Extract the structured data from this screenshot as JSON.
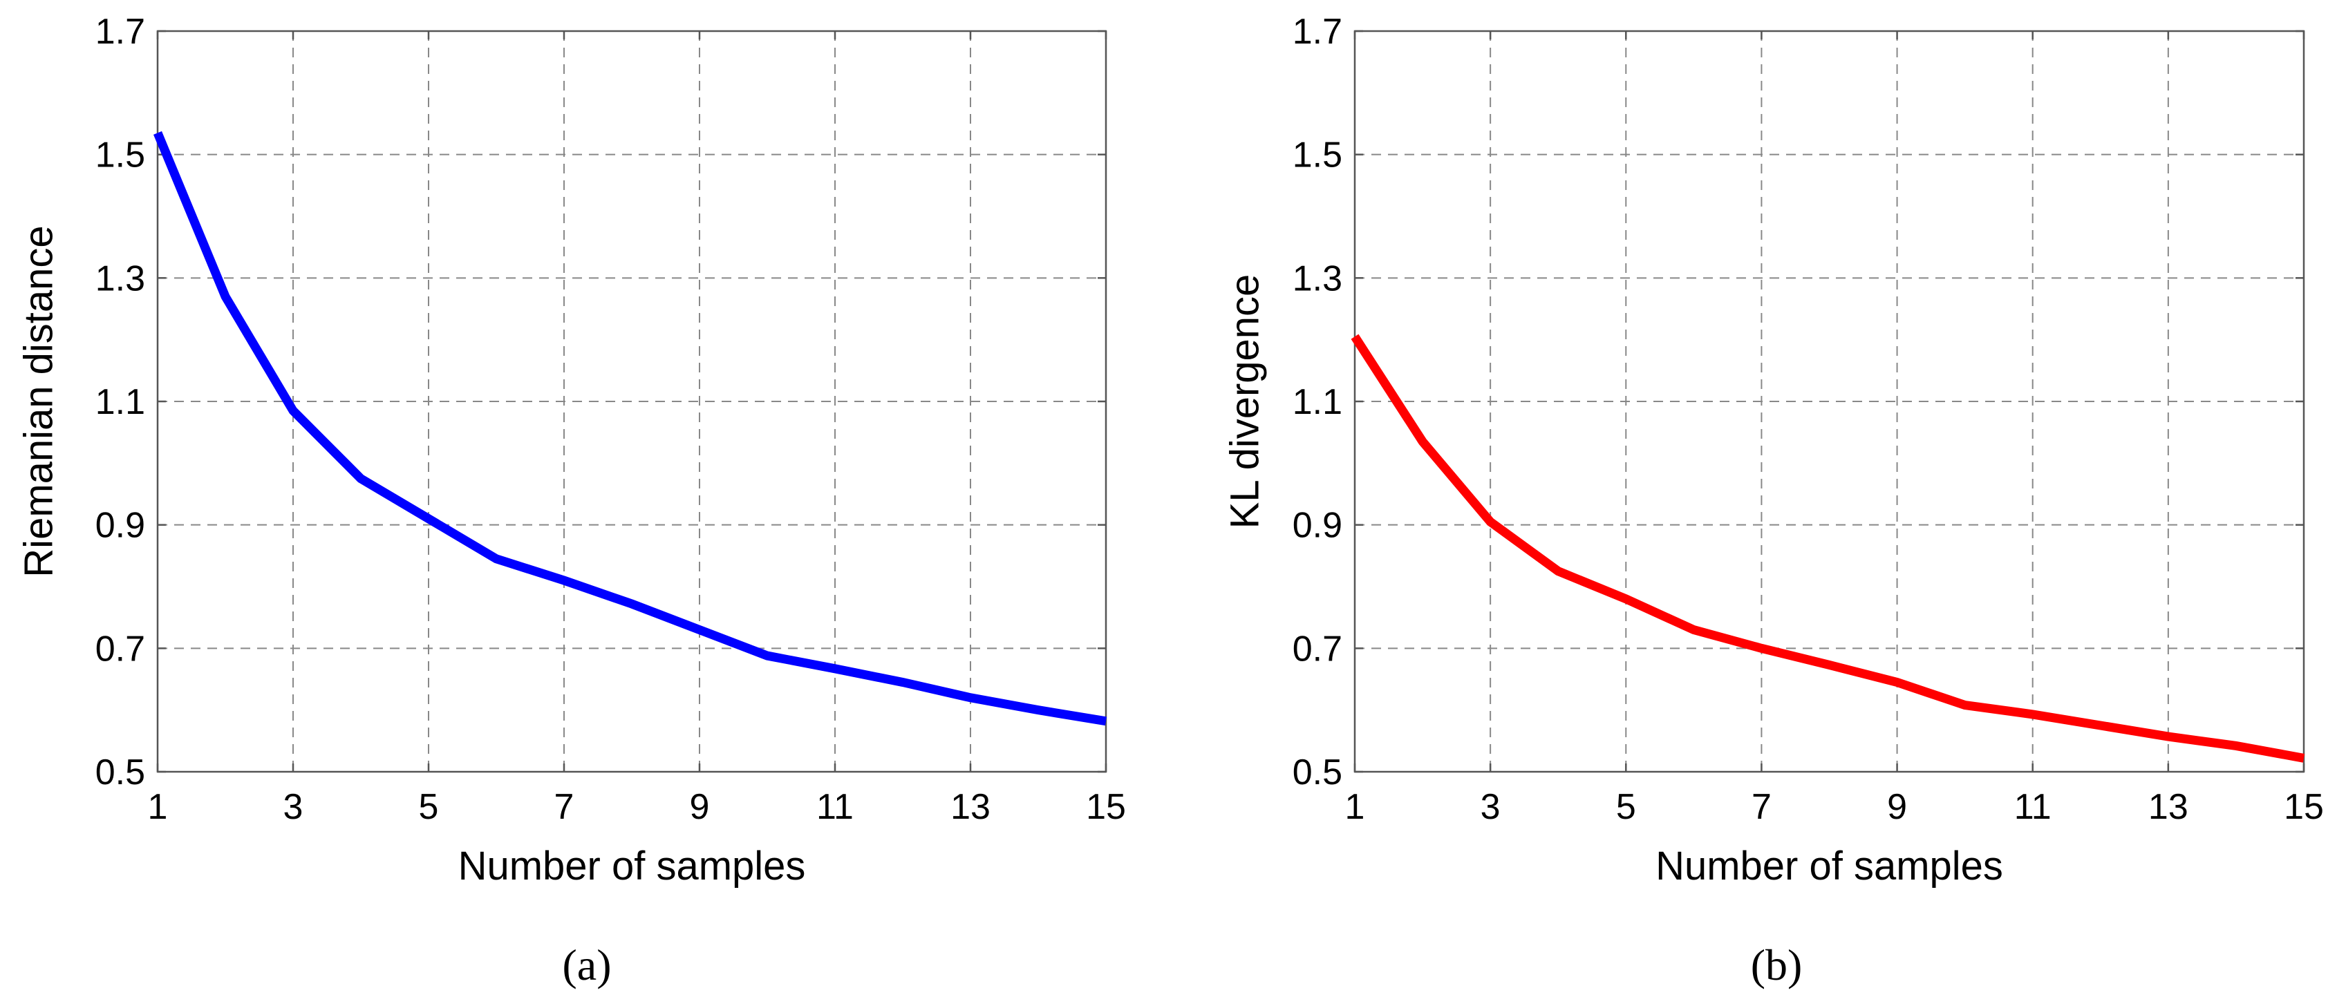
{
  "chart_data": [
    {
      "type": "line",
      "caption": "(a)",
      "xlabel": "Number of samples",
      "ylabel": "Riemanian distance",
      "xlim": [
        1,
        15
      ],
      "ylim": [
        0.5,
        1.7
      ],
      "xticks": [
        "1",
        "3",
        "5",
        "7",
        "9",
        "11",
        "13",
        "15"
      ],
      "yticks": [
        "0.5",
        "0.7",
        "0.9",
        "1.1",
        "1.3",
        "1.5",
        "1.7"
      ],
      "grid": true,
      "series": [
        {
          "name": "Riemanian distance",
          "color": "#0000ff",
          "x": [
            1,
            2,
            3,
            4,
            5,
            6,
            7,
            8,
            9,
            10,
            11,
            12,
            13,
            14,
            15
          ],
          "y": [
            1.535,
            1.27,
            1.085,
            0.975,
            0.91,
            0.845,
            0.81,
            0.772,
            0.73,
            0.688,
            0.667,
            0.645,
            0.62,
            0.6,
            0.582
          ]
        }
      ]
    },
    {
      "type": "line",
      "caption": "(b)",
      "xlabel": "Number of samples",
      "ylabel": "KL divergence",
      "xlim": [
        1,
        15
      ],
      "ylim": [
        0.5,
        1.7
      ],
      "xticks": [
        "1",
        "3",
        "5",
        "7",
        "9",
        "11",
        "13",
        "15"
      ],
      "yticks": [
        "0.5",
        "0.7",
        "0.9",
        "1.1",
        "1.3",
        "1.5",
        "1.7"
      ],
      "grid": true,
      "series": [
        {
          "name": "KL divergence",
          "color": "#ff0000",
          "x": [
            1,
            2,
            3,
            4,
            5,
            6,
            7,
            8,
            9,
            10,
            11,
            12,
            13,
            14,
            15
          ],
          "y": [
            1.205,
            1.035,
            0.905,
            0.825,
            0.78,
            0.73,
            0.7,
            0.673,
            0.645,
            0.608,
            0.593,
            0.575,
            0.557,
            0.542,
            0.522
          ]
        }
      ]
    }
  ]
}
